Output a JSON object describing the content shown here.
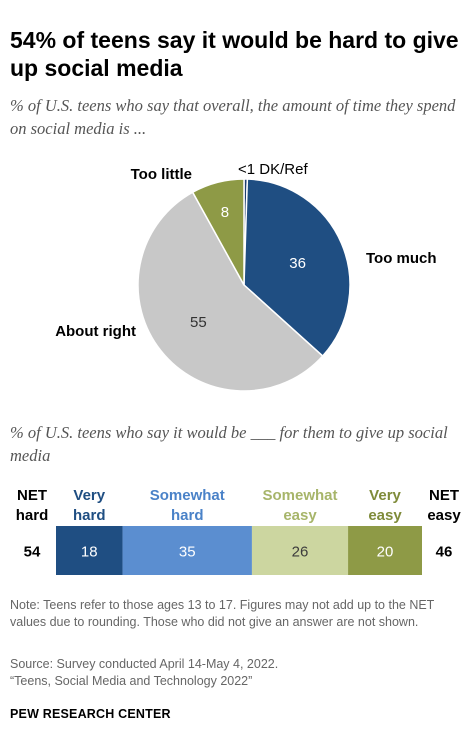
{
  "header": {
    "title": "54% of teens say it would be hard to give up social media"
  },
  "chart_data": [
    {
      "type": "pie",
      "subtitle": "% of U.S. teens who say that overall, the amount of time they spend on social media is ...",
      "slices": [
        {
          "label": "<1 DK/Ref",
          "value": 0.5,
          "value_label": "",
          "color": "#1f3e70"
        },
        {
          "label": "Too much",
          "value": 36,
          "value_label": "36",
          "color": "#1f4e82"
        },
        {
          "label": "About right",
          "value": 55,
          "value_label": "55",
          "color": "#c8c8c8"
        },
        {
          "label": "Too little",
          "value": 8,
          "value_label": "8",
          "color": "#8e9a46"
        }
      ]
    },
    {
      "type": "bar",
      "orientation": "horizontal-stacked",
      "subtitle": "% of U.S. teens who say it would be ___ for them to give up social media",
      "net_left": {
        "label": [
          "NET",
          "hard"
        ],
        "value": "54"
      },
      "net_right": {
        "label": [
          "NET",
          "easy"
        ],
        "value": "46"
      },
      "segments": [
        {
          "name": [
            "Very",
            "hard"
          ],
          "value": 18,
          "color": "#1f4e82",
          "label_color": "#1f4e82",
          "value_color": "#ffffff"
        },
        {
          "name": [
            "Somewhat",
            "hard"
          ],
          "value": 35,
          "color": "#5b8ed0",
          "label_color": "#4a82c8",
          "value_color": "#ffffff"
        },
        {
          "name": [
            "Somewhat",
            "easy"
          ],
          "value": 26,
          "color": "#ccd6a0",
          "label_color": "#a7b56a",
          "value_color": "#3c3c3c"
        },
        {
          "name": [
            "Very",
            "easy"
          ],
          "value": 20,
          "color": "#8e9a46",
          "label_color": "#7f8b3a",
          "value_color": "#ffffff"
        }
      ]
    }
  ],
  "footer": {
    "note": "Note: Teens refer to those ages 13 to 17. Figures may not add up to the NET values due to rounding. Those who did not give an answer are not shown.",
    "source": "Source: Survey conducted April 14-May 4, 2022.",
    "report": "“Teens, Social Media and Technology 2022”",
    "brand": "PEW RESEARCH CENTER"
  }
}
